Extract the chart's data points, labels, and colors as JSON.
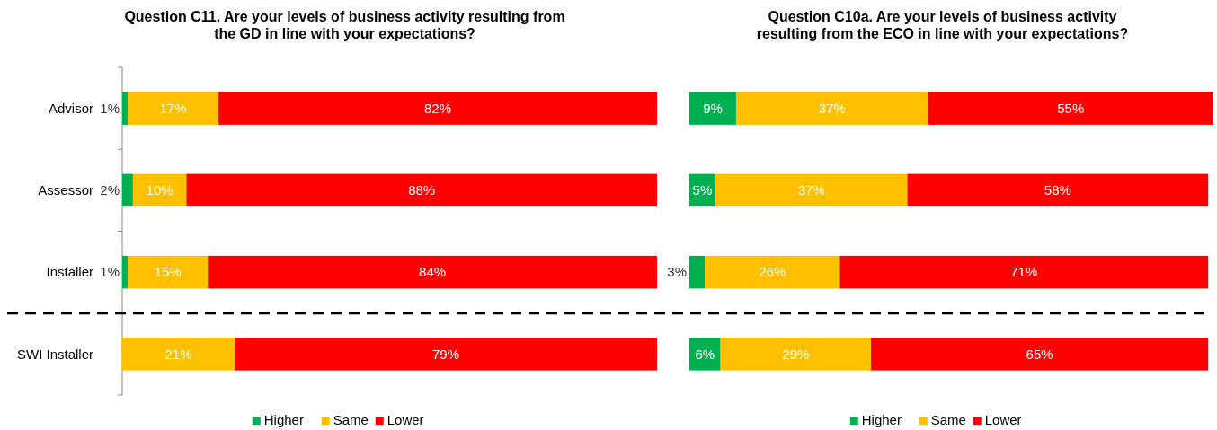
{
  "chart_data": [
    {
      "type": "bar",
      "title": "Question C11. Are your levels of business activity resulting from\nthe GD in line with your expectations?",
      "orientation": "horizontal",
      "stacked": true,
      "categories": [
        "Advisor",
        "Assessor",
        "Installer",
        "SWI Installer"
      ],
      "xlim": [
        0,
        100
      ],
      "tick_labels": "y",
      "legend": "bottom",
      "series": [
        {
          "name": "Higher",
          "color": "#00b050",
          "values": [
            1,
            2,
            1,
            null
          ],
          "value_labels": [
            "1%",
            "2%",
            "1%",
            null
          ]
        },
        {
          "name": "Same",
          "color": "#ffc000",
          "values": [
            17,
            10,
            15,
            21
          ],
          "value_labels": [
            "17%",
            "10%",
            "15%",
            "21%"
          ]
        },
        {
          "name": "Lower",
          "color": "#ff0000",
          "values": [
            82,
            88,
            84,
            79
          ],
          "value_labels": [
            "82%",
            "88%",
            "84%",
            "79%"
          ]
        }
      ]
    },
    {
      "type": "bar",
      "title": "Question C10a. Are your levels of business activity\nresulting from the ECO in line with your expectations?",
      "orientation": "horizontal",
      "stacked": true,
      "categories": [
        null,
        null,
        null,
        null
      ],
      "xlim": [
        0,
        101
      ],
      "tick_labels": false,
      "legend": "bottom",
      "series": [
        {
          "name": "Higher",
          "color": "#00b050",
          "values": [
            9,
            5,
            3,
            6
          ],
          "value_labels": [
            "9%",
            "5%",
            "3%",
            "6%"
          ]
        },
        {
          "name": "Same",
          "color": "#ffc000",
          "values": [
            37,
            37,
            26,
            29
          ],
          "value_labels": [
            "37%",
            "37%",
            "26%",
            "29%"
          ]
        },
        {
          "name": "Lower",
          "color": "#ff0000",
          "values": [
            55,
            58,
            71,
            65
          ],
          "value_labels": [
            "55%",
            "58%",
            "71%",
            "65%"
          ]
        }
      ]
    }
  ]
}
